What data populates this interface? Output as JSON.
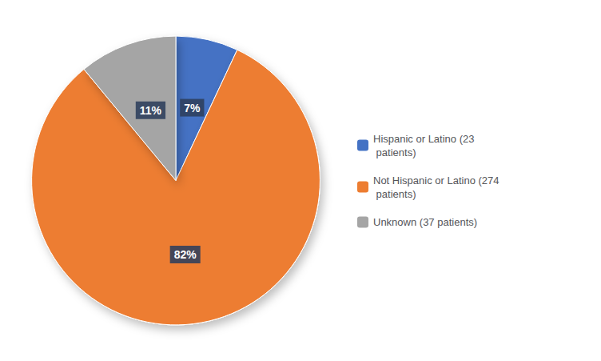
{
  "chart_data": {
    "type": "pie",
    "categories": [
      "Hispanic or Latino (23\n patients)",
      "Not Hispanic or Latino (274\n patients)",
      "Unknown (37 patients)"
    ],
    "values": [
      7,
      82,
      11
    ],
    "value_labels": [
      "7%",
      "82%",
      "11%"
    ],
    "colors": [
      "#4472C4",
      "#ED7D31",
      "#A5A5A5"
    ],
    "data_labels": true,
    "legend": "right"
  }
}
